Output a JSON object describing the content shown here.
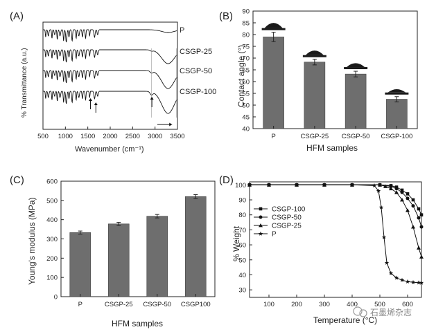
{
  "figure": {
    "watermark": "石墨烯杂志",
    "panels": [
      "(A)",
      "(B)",
      "(C)",
      "(D)"
    ]
  },
  "chart_data": [
    {
      "id": "A",
      "type": "line",
      "xlabel": "Wavenumber (cm⁻¹)",
      "ylabel": "% Transmittance (a.u.)",
      "xlim": [
        500,
        3500
      ],
      "xticks": [
        500,
        1000,
        1500,
        2000,
        2500,
        3000,
        3500
      ],
      "series": [
        {
          "name": "P"
        },
        {
          "name": "CSGP-25"
        },
        {
          "name": "CSGP-50"
        },
        {
          "name": "CSGP-100"
        }
      ]
    },
    {
      "id": "B",
      "type": "bar",
      "categories": [
        "P",
        "CSGP-25",
        "CSGP-50",
        "CSGP-100"
      ],
      "values": [
        79,
        68.3,
        63.2,
        52.5
      ],
      "errors": [
        2,
        1.2,
        1.2,
        1.1
      ],
      "xlabel": "HFM samples",
      "ylabel": "Contact angle (°)",
      "ylim": [
        40,
        90
      ],
      "yticks": [
        40,
        45,
        50,
        55,
        60,
        65,
        70,
        75,
        80,
        85,
        90
      ]
    },
    {
      "id": "C",
      "type": "bar",
      "categories": [
        "P",
        "CSGP-25",
        "CSGP-50",
        "CSGP100"
      ],
      "values": [
        333,
        378,
        418,
        520
      ],
      "errors": [
        8,
        8,
        9,
        10
      ],
      "xlabel": "HFM samples",
      "ylabel": "Young's modulus (MPa)",
      "ylim": [
        0,
        600
      ],
      "yticks": [
        0,
        100,
        200,
        300,
        400,
        500,
        600
      ]
    },
    {
      "id": "D",
      "type": "line",
      "xlabel": "Temperature (°C)",
      "ylabel": "% Weight",
      "xlim": [
        30,
        650
      ],
      "ylim": [
        25,
        102
      ],
      "xticks": [
        100,
        200,
        300,
        400,
        500,
        600
      ],
      "yticks": [
        30,
        40,
        50,
        60,
        70,
        80,
        90,
        100
      ],
      "legend_position": "middle-left",
      "series": [
        {
          "name": "CSGP-100",
          "marker": "square",
          "x": [
            30,
            100,
            200,
            300,
            400,
            500,
            540,
            560,
            580,
            600,
            620,
            640,
            650
          ],
          "y": [
            100,
            100,
            100,
            100,
            100,
            100,
            99.5,
            98.5,
            96.5,
            94,
            90,
            84,
            80
          ]
        },
        {
          "name": "CSGP-50",
          "marker": "circle",
          "x": [
            30,
            100,
            200,
            300,
            400,
            500,
            540,
            560,
            580,
            600,
            620,
            640,
            650
          ],
          "y": [
            100,
            100,
            100,
            100,
            100,
            100,
            99,
            97.5,
            95,
            91,
            86,
            78,
            72
          ]
        },
        {
          "name": "CSGP-25",
          "marker": "triangle",
          "x": [
            30,
            100,
            200,
            300,
            400,
            500,
            520,
            540,
            560,
            580,
            600,
            620,
            640,
            650
          ],
          "y": [
            100,
            100,
            100,
            100,
            100,
            100,
            99,
            97.5,
            95,
            90,
            83,
            72,
            58,
            52
          ]
        },
        {
          "name": "P",
          "marker": "star",
          "x": [
            30,
            100,
            200,
            300,
            400,
            480,
            495,
            505,
            515,
            525,
            540,
            560,
            580,
            600,
            620,
            640,
            650
          ],
          "y": [
            100,
            100,
            100,
            100,
            100,
            99.5,
            96,
            85,
            65,
            48,
            41,
            38,
            36.5,
            35.5,
            35,
            34.8,
            34.7
          ]
        }
      ]
    }
  ]
}
